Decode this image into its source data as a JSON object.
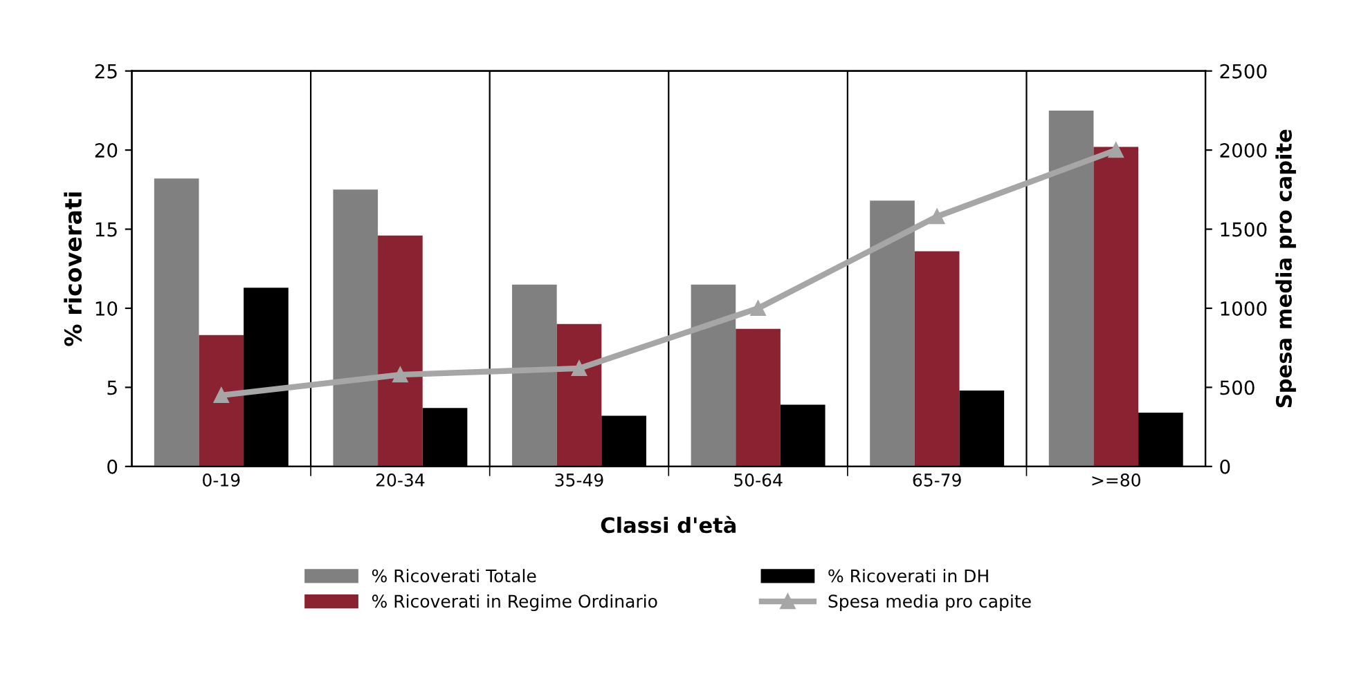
{
  "chart_data": {
    "type": "bar",
    "xlabel": "Classi d'età",
    "ylabel": "% ricoverati",
    "y2label": "Spesa media pro capite",
    "categories": [
      "0-19",
      "20-34",
      "35-49",
      "50-64",
      "65-79",
      ">=80"
    ],
    "series": [
      {
        "name": "% Ricoverati Totale",
        "color": "#808080",
        "values": [
          18.2,
          17.5,
          11.5,
          11.5,
          16.8,
          22.5
        ]
      },
      {
        "name": "% Ricoverati in Regime Ordinario",
        "color": "#8b2232",
        "values": [
          8.3,
          14.6,
          9.0,
          8.7,
          13.6,
          20.2
        ]
      },
      {
        "name": "% Ricoverati in DH",
        "color": "#000000",
        "values": [
          11.3,
          3.7,
          3.2,
          3.9,
          4.8,
          3.4
        ]
      },
      {
        "name": "Spesa media pro capite",
        "type": "line",
        "axis": "y2",
        "color": "#a6a6a6",
        "marker": "triangle",
        "values": [
          450,
          580,
          620,
          1000,
          1580,
          2000
        ]
      }
    ],
    "ylim": [
      0,
      25
    ],
    "yticks": [
      0,
      5,
      10,
      15,
      20,
      25
    ],
    "y2lim": [
      0,
      2500
    ],
    "y2ticks": [
      0,
      500,
      1000,
      1500,
      2000,
      2500
    ],
    "grid": "x",
    "legend": "bottom"
  }
}
